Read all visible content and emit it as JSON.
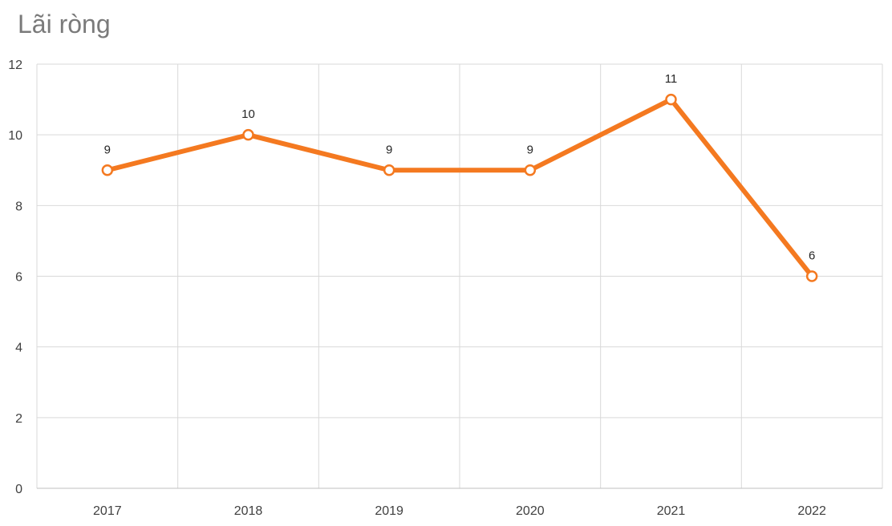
{
  "chart_data": {
    "type": "line",
    "title": "Lãi ròng",
    "categories": [
      "2017",
      "2018",
      "2019",
      "2020",
      "2021",
      "2022"
    ],
    "series": [
      {
        "values": [
          9,
          10,
          9,
          9,
          11,
          6
        ],
        "color": "#F47920"
      }
    ],
    "ylim": [
      0,
      12
    ],
    "yticks": [
      "0",
      "2",
      "4",
      "6",
      "8",
      "10",
      "12"
    ],
    "data_labels": [
      "9",
      "10",
      "9",
      "9",
      "11",
      "6"
    ],
    "grid": "both",
    "gridColor": "#D9D9D9",
    "axisColor": "#BFBFBF",
    "markerFill": "#FFFFFF"
  }
}
